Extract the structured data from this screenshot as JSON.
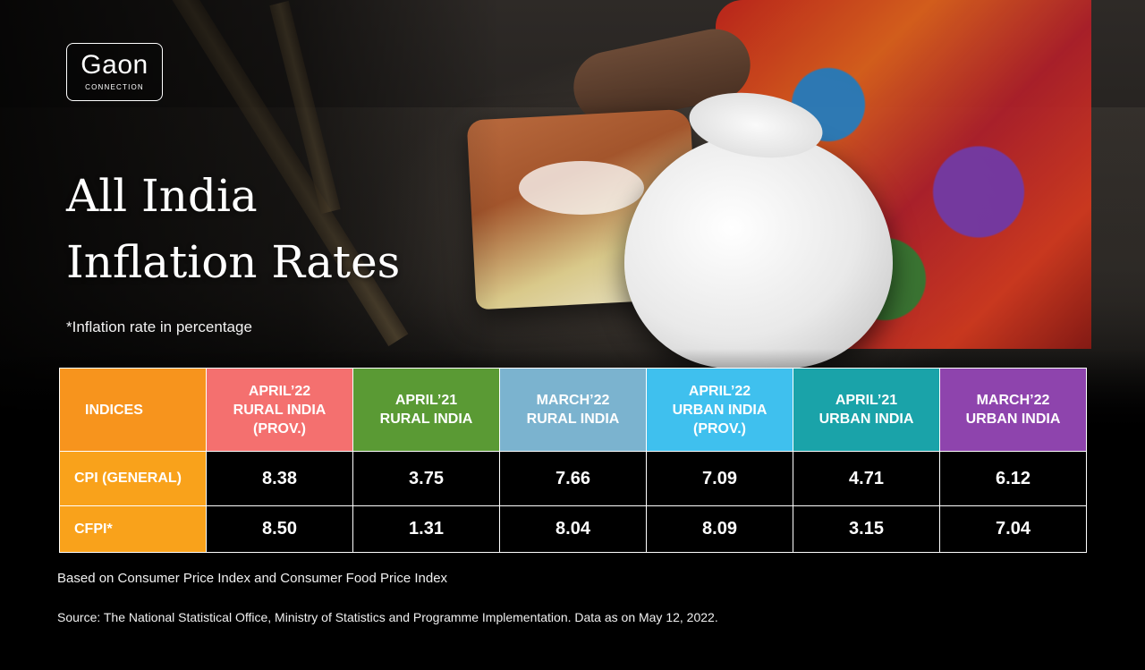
{
  "brand": {
    "logo_main": "Gaon",
    "logo_sub": "CONNECTION"
  },
  "title_lines": [
    "All India",
    "Inflation Rates"
  ],
  "note": "*Inflation rate in percentage",
  "colors": {
    "indices": "#f7941d",
    "april22_rural": "#f4706f",
    "april21_rural": "#5a9a34",
    "march22_rural": "#7bb3cf",
    "april22_urban": "#3fc0ee",
    "april21_urban": "#1aa3a9",
    "march22_urban": "#8e44ad",
    "row_label": "#f9a21b"
  },
  "chart_data": {
    "type": "table",
    "columns": [
      {
        "key": "indices",
        "label": "INDICES"
      },
      {
        "key": "april22_rural",
        "label": "APRIL’22\nRURAL INDIA\n(PROV.)"
      },
      {
        "key": "april21_rural",
        "label": "APRIL’21\nRURAL INDIA"
      },
      {
        "key": "march22_rural",
        "label": "MARCH’22\nRURAL INDIA"
      },
      {
        "key": "april22_urban",
        "label": "APRIL’22\nURBAN INDIA\n(PROV.)"
      },
      {
        "key": "april21_urban",
        "label": "APRIL’21\nURBAN INDIA"
      },
      {
        "key": "march22_urban",
        "label": "MARCH’22\nURBAN INDIA"
      }
    ],
    "rows": [
      {
        "label": "CPI (GENERAL)",
        "values": [
          "8.38",
          "3.75",
          "7.66",
          "7.09",
          "4.71",
          "6.12"
        ]
      },
      {
        "label": "CFPI*",
        "values": [
          "8.50",
          "1.31",
          "8.04",
          "8.09",
          "3.15",
          "7.04"
        ]
      }
    ]
  },
  "footnotes": {
    "basis": "Based on Consumer Price Index and Consumer Food Price Index",
    "source": "Source: The National Statistical Office, Ministry of Statistics and Programme Implementation. Data as on May 12, 2022."
  }
}
